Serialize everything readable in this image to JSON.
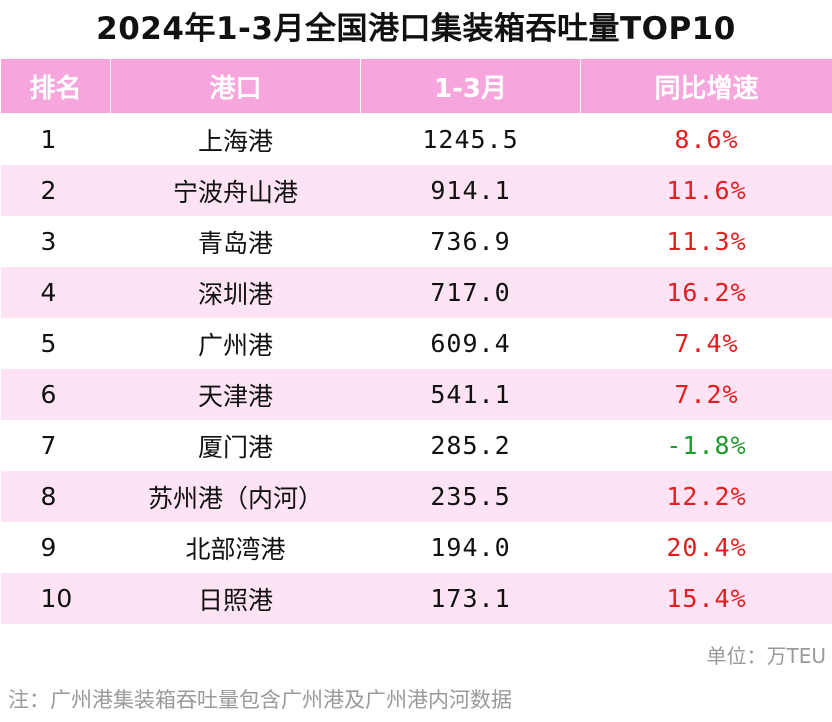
{
  "title": "2024年1-3月全国港口集装箱吞吐量TOP10",
  "headers": [
    "排名",
    "港口",
    "1-3月",
    "同比增速"
  ],
  "rows": [
    {
      "rank": "1",
      "port": "上海港",
      "value": "1245.5",
      "yoy": "8.6%"
    },
    {
      "rank": "2",
      "port": "宁波舟山港",
      "value": "914.1",
      "yoy": "11.6%"
    },
    {
      "rank": "3",
      "port": "青岛港",
      "value": "736.9",
      "yoy": "11.3%"
    },
    {
      "rank": "4",
      "port": "深圳港",
      "value": "717.0",
      "yoy": "16.2%"
    },
    {
      "rank": "5",
      "port": "广州港",
      "value": "609.4",
      "yoy": "7.4%"
    },
    {
      "rank": "6",
      "port": "天津港",
      "value": "541.1",
      "yoy": "7.2%"
    },
    {
      "rank": "7",
      "port": "厦门港",
      "value": "285.2",
      "yoy": "-1.8%"
    },
    {
      "rank": "8",
      "port": "苏州港（内河）",
      "value": "235.5",
      "yoy": "12.2%"
    },
    {
      "rank": "9",
      "port": "北部湾港",
      "value": "194.0",
      "yoy": "20.4%"
    },
    {
      "rank": "10",
      "port": "日照港",
      "value": "173.1",
      "yoy": "15.4%"
    }
  ],
  "unit": "单位：万TEU",
  "note": "注：广州港集装箱吞吐量包含广州港及广州港内河数据",
  "colors": {
    "header_bg": "#f6a5dd",
    "stripe": "#fde3f4",
    "positive": "#e21f1f",
    "negative": "#1d9b2c"
  },
  "chart_data": {
    "type": "table",
    "title": "2024年1-3月全国港口集装箱吞吐量TOP10",
    "columns": [
      "排名",
      "港口",
      "1-3月",
      "同比增速"
    ],
    "rows": [
      [
        1,
        "上海港",
        1245.5,
        "8.6%"
      ],
      [
        2,
        "宁波舟山港",
        914.1,
        "11.6%"
      ],
      [
        3,
        "青岛港",
        736.9,
        "11.3%"
      ],
      [
        4,
        "深圳港",
        717.0,
        "16.2%"
      ],
      [
        5,
        "广州港",
        609.4,
        "7.4%"
      ],
      [
        6,
        "天津港",
        541.1,
        "7.2%"
      ],
      [
        7,
        "厦门港",
        285.2,
        "-1.8%"
      ],
      [
        8,
        "苏州港（内河）",
        235.5,
        "12.2%"
      ],
      [
        9,
        "北部湾港",
        194.0,
        "20.4%"
      ],
      [
        10,
        "日照港",
        173.1,
        "15.4%"
      ]
    ],
    "unit": "万TEU"
  }
}
